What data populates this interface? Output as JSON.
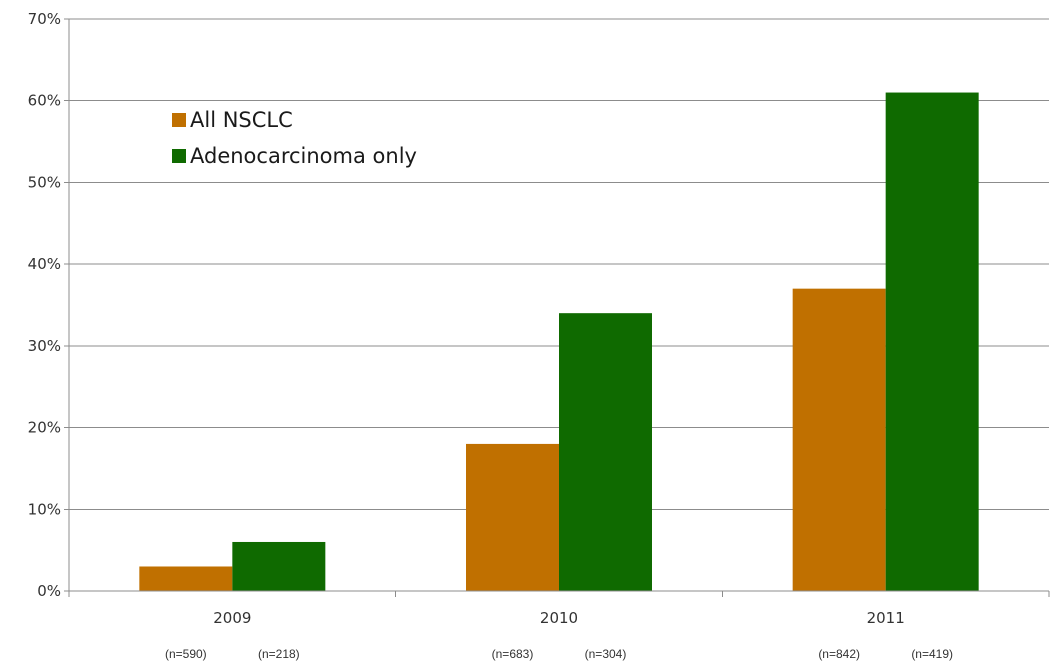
{
  "chart_data": {
    "type": "bar",
    "categories": [
      "2009",
      "2010",
      "2011"
    ],
    "series": [
      {
        "name": "All NSCLC",
        "color": "#C07000",
        "values": [
          3,
          18,
          37
        ],
        "n_labels": [
          "(n=590)",
          "(n=683)",
          "(n=842)"
        ]
      },
      {
        "name": "Adenocarcinoma only",
        "color": "#0F6A00",
        "values": [
          6,
          34,
          61
        ],
        "n_labels": [
          "(n=218)",
          "(n=304)",
          "(n=419)"
        ]
      }
    ],
    "yticks": [
      "0%",
      "10%",
      "20%",
      "30%",
      "40%",
      "50%",
      "60%",
      "70%"
    ],
    "ylim": [
      0,
      70
    ],
    "grid": true,
    "legend_position": "top-left"
  }
}
